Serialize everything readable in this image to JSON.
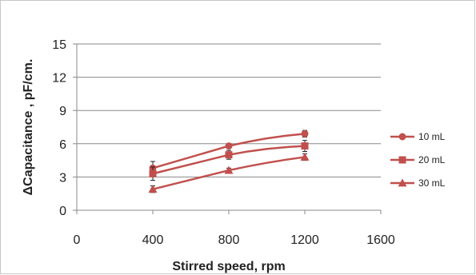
{
  "chart_data": {
    "type": "line",
    "title": "",
    "xlabel": "Stirred speed, rpm",
    "ylabel": "ΔCapacitance , pF/cm.",
    "xlim": [
      0,
      1600
    ],
    "ylim": [
      0,
      15
    ],
    "x_ticks": [
      "0",
      "400",
      "800",
      "1200",
      "1600"
    ],
    "y_ticks": [
      "0",
      "3",
      "6",
      "9",
      "12",
      "15"
    ],
    "grid": "horizontal",
    "legend_position": "right",
    "x": [
      400,
      800,
      1200
    ],
    "series": [
      {
        "name": "10 mL",
        "marker": "circle",
        "color": "#c0504d",
        "values": [
          3.8,
          5.8,
          6.9
        ],
        "error": [
          0.6,
          0.2,
          0.3
        ]
      },
      {
        "name": "20 mL",
        "marker": "square",
        "color": "#c0504d",
        "values": [
          3.3,
          5.0,
          5.8
        ],
        "error": [
          0.6,
          0.4,
          0.5
        ]
      },
      {
        "name": "30 mL",
        "marker": "triangle",
        "color": "#c0504d",
        "values": [
          1.9,
          3.6,
          4.8
        ],
        "error": [
          0.3,
          0.2,
          0.3
        ]
      }
    ]
  }
}
